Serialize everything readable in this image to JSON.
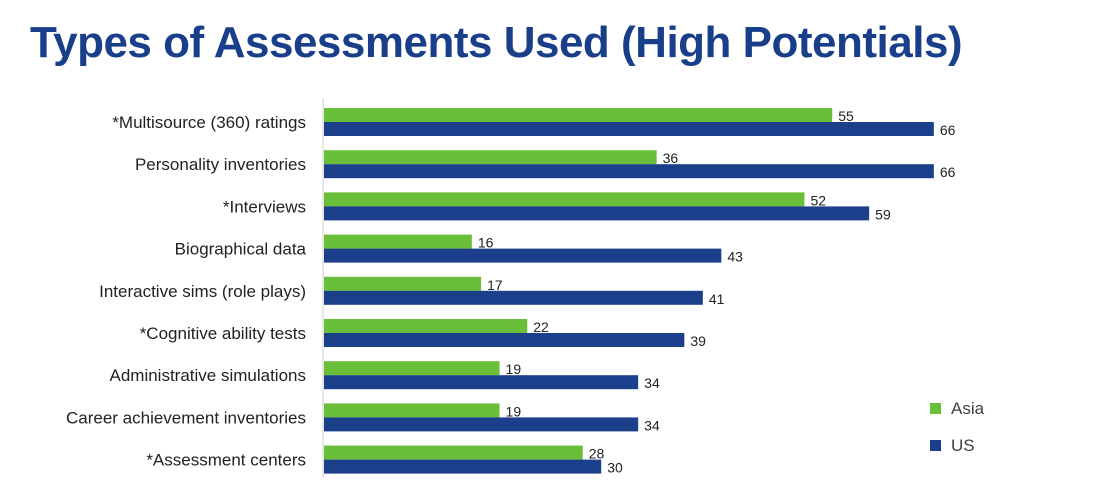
{
  "chart_data": {
    "type": "bar",
    "orientation": "horizontal",
    "title": "Types of Assessments Used (High Potentials)",
    "categories": [
      "*Multisource (360) ratings",
      "Personality inventories",
      "*Interviews",
      "Biographical data",
      "Interactive sims (role plays)",
      "*Cognitive ability tests",
      "Administrative simulations",
      "Career achievement inventories",
      "*Assessment centers"
    ],
    "series": [
      {
        "name": "Asia",
        "color": "#6abf3a",
        "values": [
          55,
          36,
          52,
          16,
          17,
          22,
          19,
          19,
          28
        ]
      },
      {
        "name": "US",
        "color": "#1b3f8b",
        "values": [
          66,
          66,
          59,
          43,
          41,
          39,
          34,
          34,
          30
        ]
      }
    ],
    "xlim": [
      0,
      70
    ],
    "grid": false,
    "legend_position": "bottom-right"
  }
}
